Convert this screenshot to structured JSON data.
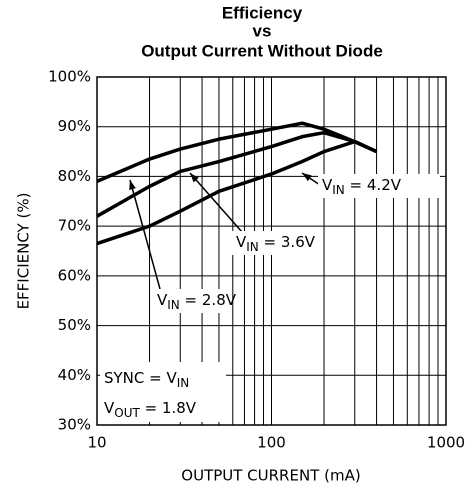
{
  "chart_data": {
    "type": "line",
    "title": [
      "Efficiency",
      "vs",
      "Output Current Without Diode"
    ],
    "xlabel": "OUTPUT CURRENT (mA)",
    "ylabel": "EFFICIENCY (%)",
    "xscale": "log",
    "xlim": [
      10,
      1000
    ],
    "xticks": [
      10,
      100,
      1000
    ],
    "xminor_ticks": [
      20,
      30,
      40,
      50,
      60,
      70,
      80,
      90,
      200,
      300,
      400,
      500,
      600,
      700,
      800,
      900
    ],
    "ylim": [
      30,
      100
    ],
    "yticks": [
      {
        "value": 30,
        "label": "30%"
      },
      {
        "value": 40,
        "label": "40%"
      },
      {
        "value": 50,
        "label": "50%"
      },
      {
        "value": 60,
        "label": "60%"
      },
      {
        "value": 70,
        "label": "70%"
      },
      {
        "value": 80,
        "label": "80%"
      },
      {
        "value": 90,
        "label": "90%"
      },
      {
        "value": 100,
        "label": "100%"
      }
    ],
    "grid": true,
    "x": [
      10,
      20,
      30,
      50,
      100,
      150,
      200,
      300,
      400
    ],
    "series": [
      {
        "label": [
          "V",
          "IN",
          " = 2.8V"
        ],
        "color": "#000000",
        "values": [
          79,
          83.5,
          85.5,
          87.5,
          89.5,
          90.7,
          89.5,
          87,
          85
        ]
      },
      {
        "label": [
          "V",
          "IN",
          " = 3.6V"
        ],
        "color": "#000000",
        "values": [
          72,
          78,
          81,
          83,
          86,
          88,
          88.8,
          87,
          85
        ]
      },
      {
        "label": [
          "V",
          "IN",
          " = 4.2V"
        ],
        "color": "#000000",
        "values": [
          66.5,
          70,
          73,
          77,
          80.5,
          83,
          85,
          87,
          85
        ]
      }
    ],
    "annotations": [
      [
        "SYNC = V",
        "IN"
      ],
      [
        "V",
        "OUT",
        " = 1.8V"
      ]
    ]
  }
}
